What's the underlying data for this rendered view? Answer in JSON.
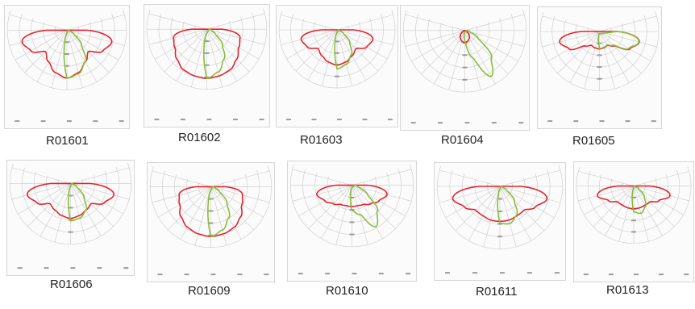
{
  "figure": {
    "background": "#ffffff",
    "colors": {
      "c0": "#e8202a",
      "c90": "#86bd3a",
      "grid": "#c9c9c9",
      "ticks": "#9a9a9a"
    }
  },
  "chart_data": [
    {
      "type": "polar",
      "label": "R01601",
      "c0": [
        0.98,
        0.9,
        0.75,
        0.62,
        0.85,
        0.95
      ],
      "c90": [
        0.98,
        0.92,
        0.75,
        0.42,
        0.17,
        0.06
      ]
    },
    {
      "type": "polar",
      "label": "R01602",
      "c0": [
        1.0,
        0.98,
        0.95,
        0.86,
        0.75,
        0.7
      ],
      "c90": [
        1.0,
        0.9,
        0.7,
        0.45,
        0.2,
        0.1
      ]
    },
    {
      "type": "polar",
      "label": "R01603",
      "c0": [
        0.74,
        0.7,
        0.63,
        0.56,
        0.72,
        0.78
      ],
      "c90": [
        0.82,
        0.75,
        0.6,
        0.38,
        0.16,
        0.05
      ]
    },
    {
      "type": "polar",
      "label": "R01604",
      "c0": [
        0.24,
        0.22,
        0.18,
        0.12,
        0.05,
        0.02
      ],
      "c90": [
        0.2,
        0.55,
        1.05,
        0.75,
        0.3,
        0.1
      ]
    },
    {
      "type": "polar",
      "label": "R01605",
      "c0": [
        0.36,
        0.35,
        0.33,
        0.42,
        0.72,
        0.85
      ],
      "c90": [
        0.35,
        0.34,
        0.32,
        0.4,
        0.7,
        0.84
      ]
    },
    {
      "type": "polar",
      "label": "R01606",
      "c0": [
        0.7,
        0.67,
        0.62,
        0.58,
        0.78,
        0.9
      ],
      "c90": [
        0.75,
        0.72,
        0.62,
        0.38,
        0.15,
        0.05
      ]
    },
    {
      "type": "polar",
      "label": "R01609",
      "c0": [
        1.0,
        0.98,
        0.94,
        0.85,
        0.72,
        0.66
      ],
      "c90": [
        1.0,
        0.9,
        0.72,
        0.46,
        0.2,
        0.08
      ]
    },
    {
      "type": "polar",
      "label": "R01610",
      "c0": [
        0.42,
        0.42,
        0.44,
        0.52,
        0.62,
        0.72
      ],
      "c90": [
        0.5,
        0.6,
        0.95,
        0.72,
        0.35,
        0.12
      ]
    },
    {
      "type": "polar",
      "label": "R01611",
      "c0": [
        0.68,
        0.68,
        0.66,
        0.66,
        0.8,
        0.95
      ],
      "c90": [
        0.72,
        0.75,
        0.65,
        0.4,
        0.15,
        0.05
      ]
    },
    {
      "type": "polar",
      "label": "R01613",
      "c0": [
        0.48,
        0.48,
        0.47,
        0.48,
        0.62,
        0.8
      ],
      "c90": [
        0.55,
        0.6,
        0.5,
        0.32,
        0.12,
        0.04
      ]
    }
  ]
}
